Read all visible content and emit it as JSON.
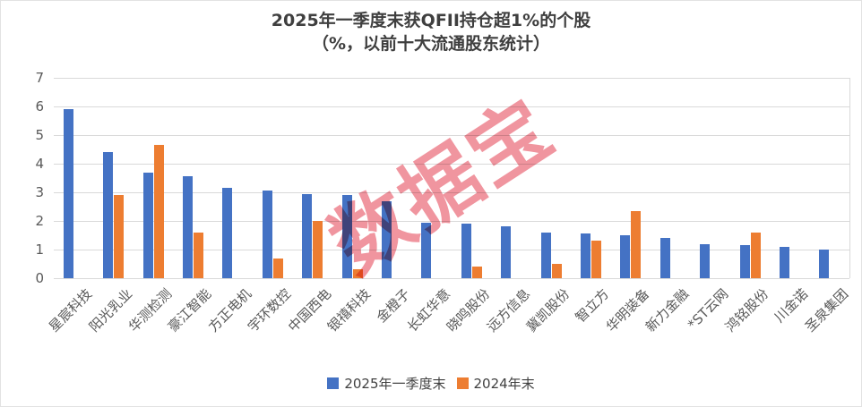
{
  "title": {
    "line1": "2025年一季度末获QFII持仓超1%的个股",
    "line2": "（%，以前十大流通股东统计）"
  },
  "watermark": "数据宝",
  "colors": {
    "series_2025q1": "#4472C4",
    "series_2024end": "#ED7D31",
    "gridline": "#D9D9D9",
    "axis_text": "#595959",
    "title_text": "#3F3F3F",
    "watermark": "#E64E5F"
  },
  "chart_data": {
    "type": "bar",
    "title": "2025年一季度末获QFII持仓超1%的个股（%，以前十大流通股东统计）",
    "xlabel": "",
    "ylabel": "",
    "ylim": [
      0,
      7
    ],
    "yticks": [
      0,
      1,
      2,
      3,
      4,
      5,
      6,
      7
    ],
    "grid": true,
    "legend_position": "bottom",
    "categories": [
      "星宸科技",
      "阳光乳业",
      "华测检测",
      "豪江智能",
      "方正电机",
      "宇环数控",
      "中国西电",
      "银禧科技",
      "金橙子",
      "长虹华意",
      "晓鸣股份",
      "远方信息",
      "冀凯股份",
      "智立方",
      "华明装备",
      "新力金融",
      "*ST云网",
      "鸿铭股份",
      "川金诺",
      "圣泉集团"
    ],
    "series": [
      {
        "name": "2025年一季度末",
        "color": "#4472C4",
        "values": [
          5.9,
          4.4,
          3.7,
          3.55,
          3.15,
          3.05,
          2.95,
          2.9,
          2.7,
          1.95,
          1.9,
          1.8,
          1.6,
          1.55,
          1.5,
          1.4,
          1.2,
          1.15,
          1.1,
          1.0
        ]
      },
      {
        "name": "2024年末",
        "color": "#ED7D31",
        "values": [
          null,
          2.9,
          4.65,
          1.6,
          null,
          0.7,
          2.0,
          0.3,
          null,
          null,
          0.4,
          null,
          0.5,
          1.3,
          2.35,
          null,
          null,
          1.6,
          null,
          null
        ]
      }
    ]
  }
}
